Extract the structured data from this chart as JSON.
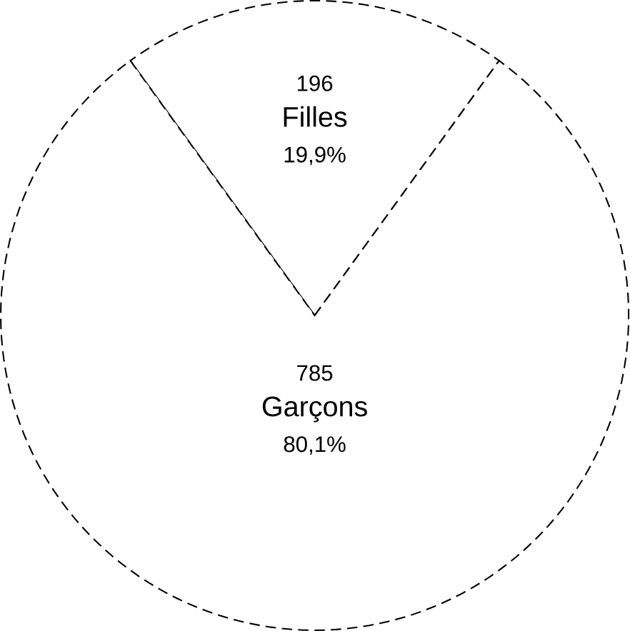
{
  "chart_data": {
    "type": "pie",
    "categories": [
      "Filles",
      "Garçons"
    ],
    "values": [
      196,
      785
    ],
    "colors": [
      "#ffffff",
      "#ffffff"
    ],
    "value_labels": [
      "196",
      "785"
    ],
    "annotations": [
      "19,9%",
      "80,1%"
    ],
    "line_style": "dashed"
  }
}
